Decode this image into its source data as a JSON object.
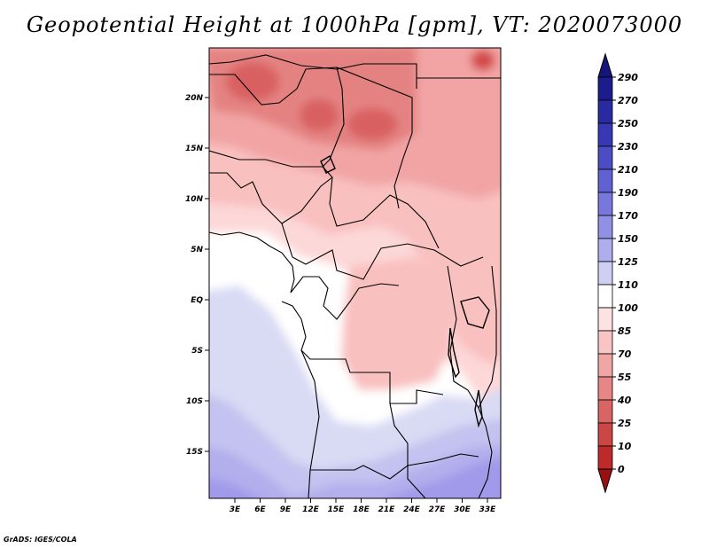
{
  "title": "Geopotential Height at 1000hPa [gpm], VT: 2020073000",
  "credit": "GrADS: IGES/COLA",
  "map": {
    "lat_labels": [
      "20N",
      "15N",
      "10N",
      "5N",
      "EQ",
      "5S",
      "10S",
      "15S"
    ],
    "lon_labels": [
      "3E",
      "6E",
      "9E",
      "12E",
      "15E",
      "18E",
      "21E",
      "24E",
      "27E",
      "30E",
      "33E"
    ]
  },
  "colorbar": {
    "levels": [
      "290",
      "270",
      "250",
      "230",
      "210",
      "190",
      "170",
      "150",
      "125",
      "110",
      "100",
      "85",
      "70",
      "55",
      "40",
      "25",
      "10",
      "0"
    ],
    "colors": [
      "#1c1c8c",
      "#2a2aa3",
      "#3838b4",
      "#4c4cc4",
      "#6161d2",
      "#7878dc",
      "#9090e4",
      "#aeaeec",
      "#cfcff4",
      "#ffffff",
      "#fde2e2",
      "#f9c4c4",
      "#f1a6a6",
      "#e68686",
      "#d96464",
      "#cc4646",
      "#bd2a2a",
      "#ab1414"
    ],
    "top_color": "#15157a",
    "bottom_color": "#991010"
  },
  "field_colors": {
    "white": "#ffffff",
    "pink_lightest": "#fdd8d8",
    "pink_light": "#f9c0c0",
    "pink_mid": "#f2a4a4",
    "pink_dark": "#e48282",
    "red": "#d96060",
    "red_dark": "#d44848",
    "lav_light": "#d9daf4",
    "lav_mid": "#c4c2f0",
    "lav": "#b3aeec",
    "lav_dark": "#a19aea",
    "lav_deep": "#9a90e6"
  }
}
